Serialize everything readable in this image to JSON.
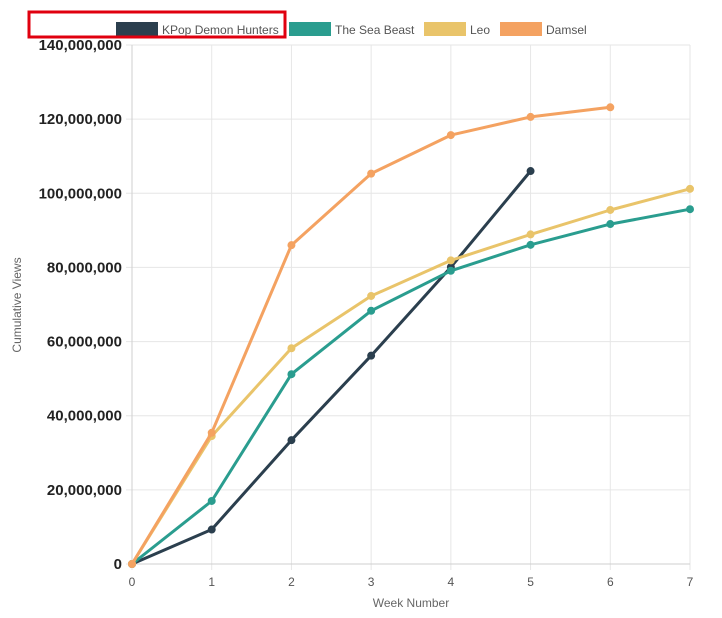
{
  "chart_data": {
    "type": "line",
    "title": "",
    "xlabel": "Week Number",
    "ylabel": "Cumulative Views",
    "x": [
      0,
      1,
      2,
      3,
      4,
      5,
      6,
      7
    ],
    "xlim": [
      0,
      7
    ],
    "ylim": [
      0,
      140000000
    ],
    "y_ticks": [
      {
        "value": 0,
        "label": "0"
      },
      {
        "value": 20000000,
        "label": "20,000,000"
      },
      {
        "value": 40000000,
        "label": "40,000,000"
      },
      {
        "value": 60000000,
        "label": "60,000,000"
      },
      {
        "value": 80000000,
        "label": "80,000,000"
      },
      {
        "value": 100000000,
        "label": "100,000,000"
      },
      {
        "value": 120000000,
        "label": "120,000,000"
      },
      {
        "value": 140000000,
        "label": "140,000,000"
      }
    ],
    "x_ticks": [
      "0",
      "1",
      "2",
      "3",
      "4",
      "5",
      "6",
      "7"
    ],
    "grid": true,
    "legend": "top",
    "highlighted_legend_entry": "KPop Demon Hunters",
    "highlight_color": "#e0000f",
    "series": [
      {
        "name": "KPop Demon Hunters",
        "color": "#2b3f4e",
        "points": [
          [
            0,
            0
          ],
          [
            1,
            9300000
          ],
          [
            2,
            33400000
          ],
          [
            3,
            56200000
          ],
          [
            4,
            80100000
          ],
          [
            5,
            106000000
          ]
        ]
      },
      {
        "name": "The Sea Beast",
        "color": "#2a9d8f",
        "points": [
          [
            0,
            0
          ],
          [
            1,
            17000000
          ],
          [
            2,
            51200000
          ],
          [
            3,
            68300000
          ],
          [
            4,
            79100000
          ],
          [
            5,
            86100000
          ],
          [
            6,
            91700000
          ],
          [
            7,
            95700000
          ]
        ]
      },
      {
        "name": "Leo",
        "color": "#e9c46a",
        "points": [
          [
            0,
            0
          ],
          [
            1,
            34500000
          ],
          [
            2,
            58200000
          ],
          [
            3,
            72300000
          ],
          [
            4,
            81900000
          ],
          [
            5,
            88900000
          ],
          [
            6,
            95500000
          ],
          [
            7,
            101200000
          ]
        ]
      },
      {
        "name": "Damsel",
        "color": "#f4a261",
        "points": [
          [
            0,
            0
          ],
          [
            1,
            35400000
          ],
          [
            2,
            86000000
          ],
          [
            3,
            105300000
          ],
          [
            4,
            115700000
          ],
          [
            5,
            120600000
          ],
          [
            6,
            123200000
          ]
        ]
      }
    ]
  }
}
